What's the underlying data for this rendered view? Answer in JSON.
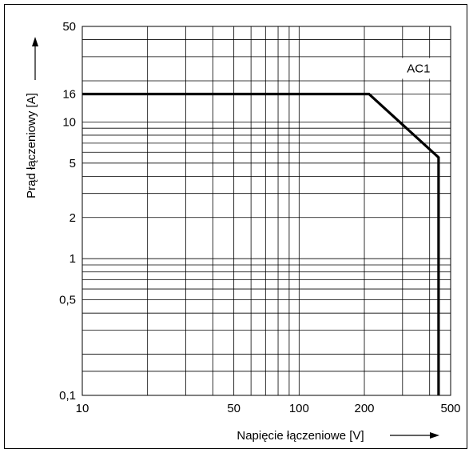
{
  "chart_data": {
    "type": "line",
    "title": "",
    "xlabel": "Napięcie łączeniowe [V]",
    "ylabel": "Prąd łączeniowy [A]",
    "x_scale": "log",
    "y_scale": "log",
    "xlim": [
      10,
      500
    ],
    "ylim": [
      0.1,
      50
    ],
    "x_ticks": [
      {
        "value": 10,
        "label": "10"
      },
      {
        "value": 50,
        "label": "50"
      },
      {
        "value": 100,
        "label": "100"
      },
      {
        "value": 200,
        "label": "200"
      },
      {
        "value": 500,
        "label": "500"
      }
    ],
    "y_ticks": [
      {
        "value": 0.1,
        "label": "0,1"
      },
      {
        "value": 0.5,
        "label": "0,5"
      },
      {
        "value": 1,
        "label": "1"
      },
      {
        "value": 2,
        "label": "2"
      },
      {
        "value": 5,
        "label": "5"
      },
      {
        "value": 10,
        "label": "10"
      },
      {
        "value": 16,
        "label": "16"
      },
      {
        "value": 50,
        "label": "50"
      }
    ],
    "x_gridlines": [
      20,
      30,
      40,
      50,
      60,
      70,
      80,
      90,
      100,
      200,
      300,
      400
    ],
    "y_gridlines": [
      0.15,
      0.2,
      0.3,
      0.4,
      0.5,
      0.6,
      0.7,
      0.8,
      0.9,
      1,
      2,
      3,
      4,
      5,
      6,
      7,
      8,
      9,
      10,
      16,
      20,
      30,
      40
    ],
    "grid": true,
    "annotation": "AC1",
    "series": [
      {
        "x": [
          10,
          210,
          440,
          440
        ],
        "y": [
          16,
          16,
          5.5,
          0.1
        ]
      }
    ]
  }
}
